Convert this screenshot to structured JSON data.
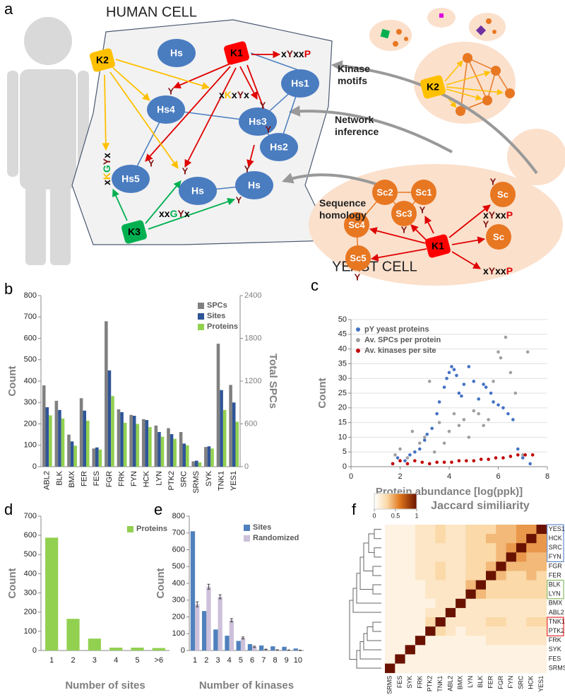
{
  "diagram": {
    "panel_label": "a",
    "human_cell": "HUMAN CELL",
    "yeast_cell": "YEAST CELL",
    "human_nodes": [
      {
        "label": "K2",
        "color": "#ffc000"
      },
      {
        "label": "Hs",
        "color": "#4a7cc0"
      },
      {
        "label": "K1",
        "color": "#ff0000"
      },
      {
        "label": "Hs1",
        "color": "#4a7cc0"
      },
      {
        "label": "Hs4",
        "color": "#4a7cc0"
      },
      {
        "label": "Hs3",
        "color": "#4a7cc0"
      },
      {
        "label": "Hs2",
        "color": "#4a7cc0"
      },
      {
        "label": "Hs5",
        "color": "#4a7cc0"
      },
      {
        "label": "Hs",
        "color": "#4a7cc0"
      },
      {
        "label": "Hs",
        "color": "#4a7cc0"
      },
      {
        "label": "K3",
        "color": "#00b050"
      }
    ],
    "yeast_nodes": [
      {
        "label": "Sc2",
        "color": "#e87722"
      },
      {
        "label": "Sc1",
        "color": "#e87722"
      },
      {
        "label": "Sc3",
        "color": "#e87722"
      },
      {
        "label": "Sc4",
        "color": "#e87722"
      },
      {
        "label": "Sc5",
        "color": "#e87722"
      },
      {
        "label": "Sc",
        "color": "#e87722"
      },
      {
        "label": "Sc",
        "color": "#e87722"
      },
      {
        "label": "K1",
        "color": "#ff0000"
      },
      {
        "label": "K2",
        "color": "#ffc000"
      }
    ],
    "motifs": [
      {
        "parts": [
          "x",
          "Y",
          "xx",
          "P"
        ],
        "colors": [
          "#000000",
          "#7f1010",
          "#000000",
          "#e00000"
        ]
      },
      {
        "parts": [
          "x",
          "K",
          "x",
          "Y",
          "x"
        ],
        "colors": [
          "#000000",
          "#ffc000",
          "#000000",
          "#7f1010",
          "#000000"
        ]
      },
      {
        "parts": [
          "x",
          "K",
          "G",
          "Y",
          "x"
        ],
        "colors": [
          "#000000",
          "#ffc000",
          "#00b050",
          "#7f1010",
          "#000000"
        ]
      },
      {
        "parts": [
          "xx",
          "G",
          "Y",
          "x"
        ],
        "colors": [
          "#000000",
          "#00b050",
          "#7f1010",
          "#000000"
        ]
      },
      {
        "parts": [
          "x",
          "Y",
          "xx",
          "P"
        ],
        "colors": [
          "#000000",
          "#7f1010",
          "#000000",
          "#e00000"
        ]
      },
      {
        "parts": [
          "x",
          "Y",
          "xx",
          "P"
        ],
        "colors": [
          "#000000",
          "#7f1010",
          "#000000",
          "#e00000"
        ]
      }
    ],
    "annotations": [
      [
        "Kinase",
        "motifs"
      ],
      [
        "Network",
        "inference"
      ],
      [
        "Sequence",
        "homology"
      ]
    ],
    "y_labels": [
      "Y",
      "Y",
      "Y",
      "Y",
      "Y",
      "Y",
      "Y",
      "Y",
      "Y",
      "Y",
      "Y",
      "Y"
    ]
  },
  "chart_data": [
    {
      "type": "bar",
      "panel_label": "b",
      "y_label": "Count",
      "y2_label": "Total SPCs",
      "categories": [
        "ABL2",
        "BLK",
        "BMX",
        "FER",
        "FES",
        "FGR",
        "FRK",
        "FYN",
        "HCK",
        "LYN",
        "PTK2",
        "SRC",
        "SRMS",
        "SYK",
        "TNK1",
        "YES1"
      ],
      "series": [
        {
          "name": "SPCs",
          "color": "#808080",
          "axis": "y2",
          "values": [
            1140,
            924,
            450,
            960,
            255,
            2040,
            804,
            726,
            666,
            576,
            540,
            486,
            75,
            276,
            1725,
            1146
          ]
        },
        {
          "name": "Sites",
          "color": "#2f5597",
          "values": [
            278,
            265,
            118,
            262,
            90,
            450,
            255,
            238,
            218,
            162,
            152,
            108,
            28,
            95,
            358,
            300
          ]
        },
        {
          "name": "Proteins",
          "color": "#92d050",
          "values": [
            240,
            225,
            98,
            215,
            80,
            330,
            205,
            200,
            185,
            140,
            130,
            100,
            20,
            85,
            265,
            210
          ]
        }
      ],
      "ylim": [
        0,
        800
      ],
      "yticks": [
        0,
        100,
        200,
        300,
        400,
        500,
        600,
        700,
        800
      ],
      "y2lim": [
        0,
        2400
      ],
      "y2ticks": [
        0,
        600,
        1200,
        1800,
        2400
      ],
      "grid": false
    },
    {
      "type": "scatter",
      "panel_label": "c",
      "y_label": "Count",
      "x_label": "Protein abundance [log(ppk)]",
      "series": [
        {
          "name": "pY yeast proteins",
          "color": "#4472c4",
          "x": [
            1.7,
            1.9,
            2.2,
            2.4,
            2.6,
            2.8,
            3.0,
            3.1,
            3.3,
            3.5,
            3.6,
            3.8,
            3.9,
            4.0,
            4.1,
            4.2,
            4.3,
            4.4,
            4.5,
            4.6,
            4.8,
            5.0,
            5.2,
            5.4,
            5.5,
            5.7,
            5.8,
            6.0,
            6.2,
            6.4,
            6.6,
            6.8,
            7.0,
            7.3
          ],
          "values": [
            1,
            3,
            2,
            4,
            5,
            6,
            9,
            11,
            13,
            18,
            22,
            27,
            30,
            32,
            34,
            33,
            31,
            25,
            24,
            28,
            34,
            29,
            23,
            28,
            27,
            25,
            22,
            21,
            20,
            18,
            16,
            6,
            3,
            1
          ]
        },
        {
          "name": "Av. SPCs per protein",
          "color": "#a0a0a0",
          "x": [
            1.8,
            2.0,
            2.3,
            2.5,
            2.8,
            3.0,
            3.2,
            3.4,
            3.6,
            3.8,
            4.0,
            4.2,
            4.4,
            4.6,
            4.8,
            5.0,
            5.2,
            5.4,
            5.6,
            5.8,
            6.0,
            6.1,
            6.3,
            6.5,
            6.7,
            7.0,
            7.2
          ],
          "values": [
            4,
            6,
            3,
            12,
            8,
            10,
            29,
            5,
            15,
            8,
            12,
            18,
            14,
            16,
            10,
            19,
            18,
            14,
            16,
            29,
            39,
            37,
            44,
            32,
            25,
            4,
            39
          ]
        },
        {
          "name": "Av. kinases per site",
          "color": "#c00000",
          "x": [
            1.7,
            2.0,
            2.3,
            2.6,
            2.9,
            3.2,
            3.5,
            3.8,
            4.1,
            4.4,
            4.7,
            5.0,
            5.3,
            5.6,
            5.9,
            6.2,
            6.5,
            6.8,
            7.1,
            7.4
          ],
          "values": [
            1,
            2,
            1,
            2,
            1.5,
            1,
            1.5,
            1.5,
            1.5,
            2,
            2,
            2,
            2.5,
            2.5,
            3,
            3,
            3.5,
            4,
            4,
            4
          ]
        }
      ],
      "xlim": [
        0,
        8
      ],
      "xticks": [
        0,
        2,
        4,
        6,
        8
      ],
      "ylim": [
        0,
        50
      ],
      "yticks": [
        0,
        5,
        10,
        15,
        20,
        25,
        30,
        35,
        40,
        45,
        50
      ],
      "grid": true
    },
    {
      "type": "bar",
      "panel_label": "d",
      "y_label": "Count",
      "x_label": "Number of sites",
      "categories": [
        "1",
        "2",
        "3",
        "4",
        "5",
        ">6"
      ],
      "series": [
        {
          "name": "Proteins",
          "color": "#92d050",
          "values": [
            588,
            165,
            62,
            15,
            15,
            13
          ]
        }
      ],
      "ylim": [
        0,
        700
      ],
      "yticks": [
        0,
        100,
        200,
        300,
        400,
        500,
        600,
        700
      ],
      "grid": false
    },
    {
      "type": "bar",
      "panel_label": "e",
      "y_label": "Count",
      "x_label": "Number of kinases",
      "categories": [
        "1",
        "2",
        "3",
        "4",
        "5",
        "6",
        "7",
        "8",
        "9",
        "10"
      ],
      "series": [
        {
          "name": "Sites",
          "color": "#4f81bd",
          "values": [
            710,
            235,
            125,
            88,
            57,
            38,
            30,
            25,
            22,
            12
          ]
        },
        {
          "name": "Randomized",
          "color": "#ccc0da",
          "values": [
            275,
            380,
            320,
            180,
            75,
            22,
            6,
            3,
            2,
            1
          ],
          "errors": [
            15,
            15,
            12,
            10,
            6,
            4,
            2,
            1,
            1,
            1
          ]
        }
      ],
      "ylim": [
        0,
        800
      ],
      "yticks": [
        0,
        100,
        200,
        300,
        400,
        500,
        600,
        700,
        800
      ],
      "grid": false
    },
    {
      "type": "heatmap",
      "panel_label": "f",
      "title": "Jaccard similiarity",
      "rows": [
        "YES1",
        "HCK",
        "SRC",
        "FYN",
        "FGR",
        "FER",
        "BLK",
        "LYN",
        "BMX",
        "ABL2",
        "TNK1",
        "PTK2",
        "FRK",
        "SYK",
        "FES",
        "SRMS"
      ],
      "columns": [
        "SRMS",
        "FES",
        "SYK",
        "FRK",
        "PTK2",
        "TNK1",
        "ABL2",
        "BMX",
        "LYN",
        "BLK",
        "FER",
        "FGR",
        "FYN",
        "SRC",
        "HCK",
        "YES1"
      ],
      "values": [
        [
          0.1,
          0.1,
          0.1,
          0.2,
          0.2,
          0.3,
          0.2,
          0.2,
          0.3,
          0.3,
          0.3,
          0.4,
          0.4,
          0.5,
          0.5,
          1
        ],
        [
          0.1,
          0.1,
          0.1,
          0.2,
          0.2,
          0.3,
          0.2,
          0.2,
          0.3,
          0.3,
          0.4,
          0.4,
          0.4,
          0.5,
          1,
          0.5
        ],
        [
          0.1,
          0.1,
          0.1,
          0.2,
          0.2,
          0.2,
          0.2,
          0.2,
          0.3,
          0.3,
          0.3,
          0.4,
          0.5,
          1,
          0.5,
          0.5
        ],
        [
          0.1,
          0.1,
          0.1,
          0.2,
          0.2,
          0.2,
          0.2,
          0.2,
          0.3,
          0.3,
          0.3,
          0.4,
          1,
          0.5,
          0.4,
          0.4
        ],
        [
          0.1,
          0.1,
          0.1,
          0.2,
          0.2,
          0.3,
          0.2,
          0.2,
          0.3,
          0.3,
          0.4,
          1,
          0.4,
          0.4,
          0.4,
          0.4
        ],
        [
          0.1,
          0.1,
          0.1,
          0.2,
          0.2,
          0.3,
          0.2,
          0.2,
          0.3,
          0.3,
          1,
          0.4,
          0.3,
          0.3,
          0.4,
          0.3
        ],
        [
          0.1,
          0.1,
          0.1,
          0.1,
          0.2,
          0.2,
          0.2,
          0.2,
          0.4,
          1,
          0.3,
          0.3,
          0.3,
          0.3,
          0.3,
          0.3
        ],
        [
          0.1,
          0.1,
          0.1,
          0.1,
          0.2,
          0.2,
          0.2,
          0.2,
          1,
          0.4,
          0.3,
          0.3,
          0.3,
          0.3,
          0.3,
          0.3
        ],
        [
          0.1,
          0.1,
          0.1,
          0.1,
          0.1,
          0.2,
          0.2,
          1,
          0.2,
          0.2,
          0.2,
          0.2,
          0.2,
          0.2,
          0.2,
          0.2
        ],
        [
          0.1,
          0.1,
          0.1,
          0.1,
          0.2,
          0.2,
          1,
          0.2,
          0.2,
          0.2,
          0.2,
          0.2,
          0.2,
          0.2,
          0.2,
          0.2
        ],
        [
          0.1,
          0.1,
          0.1,
          0.1,
          0.3,
          1,
          0.2,
          0.2,
          0.2,
          0.2,
          0.3,
          0.3,
          0.2,
          0.2,
          0.3,
          0.3
        ],
        [
          0.1,
          0.1,
          0.1,
          0.1,
          1,
          0.3,
          0.2,
          0.1,
          0.2,
          0.2,
          0.2,
          0.2,
          0.2,
          0.2,
          0.2,
          0.2
        ],
        [
          0.1,
          0.1,
          0.1,
          1,
          0.1,
          0.1,
          0.1,
          0.1,
          0.1,
          0.1,
          0.2,
          0.2,
          0.2,
          0.2,
          0.2,
          0.2
        ],
        [
          0.1,
          0.1,
          1,
          0.1,
          0.1,
          0.1,
          0.1,
          0.1,
          0.1,
          0.1,
          0.1,
          0.1,
          0.1,
          0.1,
          0.1,
          0.1
        ],
        [
          0.1,
          1,
          0.1,
          0.1,
          0.1,
          0.1,
          0.1,
          0.1,
          0.1,
          0.1,
          0.1,
          0.1,
          0.1,
          0.1,
          0.1,
          0.1
        ],
        [
          1,
          0.1,
          0.1,
          0.1,
          0.1,
          0.1,
          0.1,
          0.1,
          0.1,
          0.1,
          0.1,
          0.1,
          0.1,
          0.1,
          0.1,
          0.1
        ]
      ],
      "clim": [
        0,
        1
      ],
      "colorbar_ticks": [
        0,
        0.5,
        1
      ]
    }
  ]
}
